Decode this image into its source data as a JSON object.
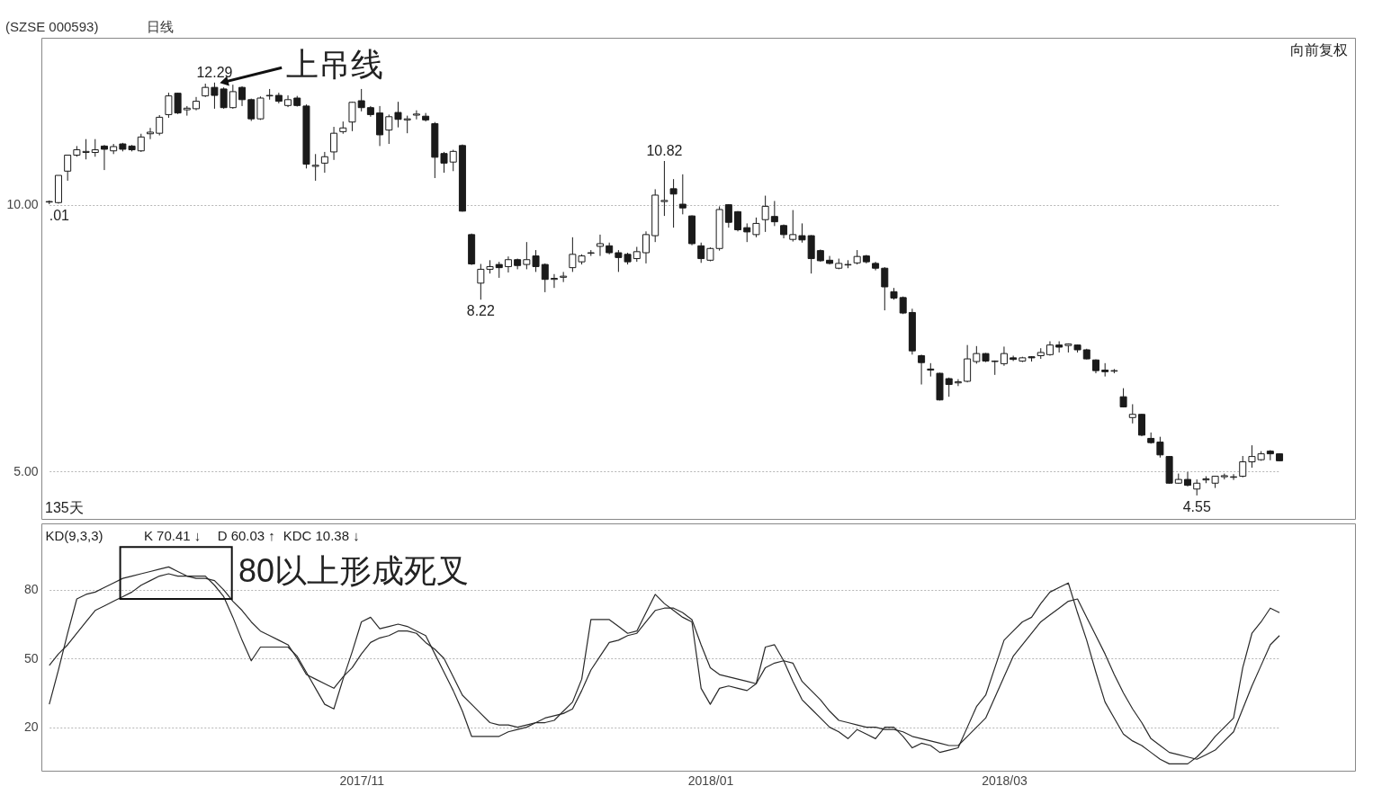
{
  "chart_data": [
    {
      "type": "candlestick",
      "title": "(SZSE 000593)",
      "subtitle": "日线",
      "color": "#1a1a1a",
      "categories": [
        null,
        null,
        null,
        null,
        null,
        null,
        null,
        null,
        null,
        null,
        null,
        null,
        null,
        null,
        null,
        null,
        null,
        null,
        null,
        null,
        null,
        null,
        null,
        null,
        null,
        null,
        null,
        null,
        null,
        null,
        null,
        null,
        null,
        null,
        "2017/11",
        null,
        null,
        null,
        null,
        null,
        null,
        null,
        null,
        null,
        null,
        null,
        null,
        null,
        null,
        null,
        null,
        null,
        null,
        null,
        null,
        null,
        null,
        null,
        null,
        null,
        null,
        null,
        null,
        null,
        null,
        null,
        null,
        null,
        null,
        null,
        null,
        null,
        "2018/01",
        null,
        null,
        null,
        null,
        null,
        null,
        null,
        null,
        null,
        null,
        null,
        null,
        null,
        null,
        null,
        null,
        null,
        null,
        null,
        null,
        null,
        null,
        null,
        null,
        null,
        null,
        null,
        null,
        null,
        null,
        null,
        "2018/03",
        null,
        null,
        null,
        null,
        null,
        null,
        null,
        null,
        null,
        null,
        null,
        null,
        null,
        null,
        null,
        null,
        null,
        null,
        null,
        null,
        null,
        null,
        null,
        null,
        null,
        null,
        null,
        null,
        null,
        null
      ],
      "ohlc": [
        [
          10.05,
          10.08,
          10.01,
          10.06
        ],
        [
          10.04,
          10.55,
          10.02,
          10.55
        ],
        [
          10.63,
          10.93,
          10.45,
          10.93
        ],
        [
          10.93,
          11.1,
          10.9,
          11.03
        ],
        [
          10.98,
          11.23,
          10.85,
          11.0
        ],
        [
          10.98,
          11.23,
          10.9,
          11.03
        ],
        [
          11.1,
          11.12,
          10.65,
          11.04
        ],
        [
          11.01,
          11.14,
          10.95,
          11.09
        ],
        [
          11.14,
          11.16,
          11.0,
          11.04
        ],
        [
          11.1,
          11.12,
          11.0,
          11.03
        ],
        [
          11.01,
          11.33,
          10.99,
          11.27
        ],
        [
          11.33,
          11.44,
          11.23,
          11.36
        ],
        [
          11.34,
          11.68,
          11.3,
          11.64
        ],
        [
          11.69,
          12.1,
          11.63,
          12.04
        ],
        [
          12.09,
          12.1,
          11.7,
          11.72
        ],
        [
          11.78,
          11.85,
          11.67,
          11.81
        ],
        [
          11.8,
          12.02,
          11.77,
          11.94
        ],
        [
          12.04,
          12.27,
          12.02,
          12.2
        ],
        [
          12.2,
          12.29,
          11.8,
          12.05
        ],
        [
          12.17,
          12.2,
          11.8,
          11.82
        ],
        [
          11.82,
          12.25,
          11.8,
          12.12
        ],
        [
          12.2,
          12.22,
          11.85,
          11.97
        ],
        [
          11.97,
          11.99,
          11.57,
          11.61
        ],
        [
          11.61,
          12.03,
          11.59,
          12.0
        ],
        [
          12.04,
          12.17,
          11.97,
          12.05
        ],
        [
          12.05,
          12.1,
          11.9,
          11.94
        ],
        [
          11.86,
          12.05,
          11.83,
          11.97
        ],
        [
          12.0,
          12.04,
          11.84,
          11.86
        ],
        [
          11.85,
          11.88,
          10.68,
          10.76
        ],
        [
          10.72,
          10.95,
          10.45,
          10.74
        ],
        [
          10.78,
          10.99,
          10.6,
          10.9
        ],
        [
          10.99,
          11.46,
          10.84,
          11.34
        ],
        [
          11.37,
          11.56,
          11.33,
          11.44
        ],
        [
          11.55,
          11.93,
          11.38,
          11.92
        ],
        [
          11.95,
          12.17,
          11.75,
          11.82
        ],
        [
          11.82,
          11.85,
          11.65,
          11.69
        ],
        [
          11.72,
          11.85,
          11.1,
          11.31
        ],
        [
          11.4,
          11.69,
          11.14,
          11.65
        ],
        [
          11.73,
          11.93,
          11.45,
          11.6
        ],
        [
          11.59,
          11.67,
          11.34,
          11.61
        ],
        [
          11.68,
          11.77,
          11.6,
          11.7
        ],
        [
          11.66,
          11.72,
          11.56,
          11.59
        ],
        [
          11.52,
          11.55,
          10.5,
          10.89
        ],
        [
          10.96,
          10.99,
          10.6,
          10.78
        ],
        [
          10.8,
          11.03,
          10.63,
          11.0
        ],
        [
          11.11,
          11.13,
          9.87,
          9.88
        ],
        [
          9.44,
          9.46,
          8.87,
          8.89
        ],
        [
          8.53,
          8.89,
          8.22,
          8.79
        ],
        [
          8.79,
          8.96,
          8.71,
          8.84
        ],
        [
          8.88,
          8.93,
          8.63,
          8.82
        ],
        [
          8.84,
          9.03,
          8.73,
          8.97
        ],
        [
          8.97,
          8.99,
          8.79,
          8.86
        ],
        [
          8.88,
          9.3,
          8.79,
          8.97
        ],
        [
          9.04,
          9.15,
          8.74,
          8.84
        ],
        [
          8.88,
          8.9,
          8.36,
          8.6
        ],
        [
          8.6,
          8.7,
          8.44,
          8.62
        ],
        [
          8.64,
          8.74,
          8.55,
          8.66
        ],
        [
          8.82,
          9.39,
          8.74,
          9.07
        ],
        [
          8.93,
          9.07,
          8.88,
          9.04
        ],
        [
          9.09,
          9.15,
          9.04,
          9.1
        ],
        [
          9.22,
          9.44,
          9.04,
          9.27
        ],
        [
          9.23,
          9.29,
          9.07,
          9.1
        ],
        [
          9.1,
          9.15,
          8.74,
          9.01
        ],
        [
          9.07,
          9.1,
          8.88,
          8.93
        ],
        [
          8.99,
          9.21,
          8.93,
          9.12
        ],
        [
          9.1,
          9.5,
          8.9,
          9.44
        ],
        [
          9.42,
          10.29,
          9.3,
          10.18
        ],
        [
          10.06,
          10.82,
          9.79,
          10.08
        ],
        [
          10.3,
          10.48,
          9.57,
          10.2
        ],
        [
          10.01,
          10.57,
          9.82,
          9.94
        ],
        [
          9.79,
          9.8,
          9.24,
          9.27
        ],
        [
          9.23,
          9.29,
          8.91,
          8.99
        ],
        [
          8.96,
          9.2,
          8.94,
          9.18
        ],
        [
          9.18,
          9.97,
          9.14,
          9.91
        ],
        [
          10.0,
          10.01,
          9.57,
          9.67
        ],
        [
          9.87,
          9.88,
          9.5,
          9.53
        ],
        [
          9.57,
          9.65,
          9.3,
          9.49
        ],
        [
          9.44,
          9.76,
          9.39,
          9.65
        ],
        [
          9.72,
          10.17,
          9.49,
          9.97
        ],
        [
          9.78,
          10.07,
          9.6,
          9.68
        ],
        [
          9.61,
          9.63,
          9.37,
          9.44
        ],
        [
          9.35,
          9.9,
          9.31,
          9.44
        ],
        [
          9.42,
          9.65,
          9.29,
          9.34
        ],
        [
          9.42,
          9.43,
          8.71,
          8.99
        ],
        [
          9.14,
          9.16,
          8.93,
          8.95
        ],
        [
          8.96,
          9.04,
          8.88,
          8.9
        ],
        [
          8.81,
          8.99,
          8.79,
          8.9
        ],
        [
          8.87,
          8.96,
          8.81,
          8.88
        ],
        [
          8.91,
          9.15,
          8.88,
          9.03
        ],
        [
          9.04,
          9.06,
          8.9,
          8.93
        ],
        [
          8.9,
          8.93,
          8.77,
          8.81
        ],
        [
          8.81,
          8.83,
          8.02,
          8.46
        ],
        [
          8.37,
          8.44,
          8.22,
          8.25
        ],
        [
          8.26,
          8.28,
          7.95,
          7.97
        ],
        [
          7.98,
          8.05,
          7.19,
          7.26
        ],
        [
          7.17,
          7.19,
          6.63,
          7.04
        ],
        [
          6.92,
          7.03,
          6.78,
          6.9
        ],
        [
          6.84,
          6.85,
          6.33,
          6.34
        ],
        [
          6.74,
          6.76,
          6.4,
          6.63
        ],
        [
          6.66,
          6.73,
          6.6,
          6.68
        ],
        [
          6.69,
          7.37,
          6.67,
          7.11
        ],
        [
          7.06,
          7.35,
          7.02,
          7.21
        ],
        [
          7.21,
          7.22,
          7.05,
          7.07
        ],
        [
          7.06,
          7.08,
          6.81,
          7.07
        ],
        [
          7.02,
          7.34,
          6.98,
          7.21
        ],
        [
          7.13,
          7.17,
          7.07,
          7.1
        ],
        [
          7.07,
          7.15,
          7.05,
          7.13
        ],
        [
          7.15,
          7.16,
          7.06,
          7.13
        ],
        [
          7.17,
          7.31,
          7.11,
          7.23
        ],
        [
          7.19,
          7.44,
          7.17,
          7.37
        ],
        [
          7.37,
          7.44,
          7.23,
          7.33
        ],
        [
          7.36,
          7.4,
          7.23,
          7.39
        ],
        [
          7.37,
          7.38,
          7.23,
          7.28
        ],
        [
          7.28,
          7.3,
          7.1,
          7.11
        ],
        [
          7.09,
          7.1,
          6.84,
          6.89
        ],
        [
          6.9,
          7.03,
          6.78,
          6.87
        ],
        [
          6.88,
          6.92,
          6.84,
          6.89
        ],
        [
          6.4,
          6.56,
          6.2,
          6.21
        ],
        [
          6.01,
          6.26,
          5.9,
          6.07
        ],
        [
          6.07,
          6.08,
          5.66,
          5.68
        ],
        [
          5.62,
          5.73,
          5.52,
          5.54
        ],
        [
          5.55,
          5.65,
          5.26,
          5.31
        ],
        [
          5.28,
          5.29,
          4.77,
          4.78
        ],
        [
          4.78,
          4.96,
          4.77,
          4.85
        ],
        [
          4.85,
          4.99,
          4.72,
          4.74
        ],
        [
          4.67,
          4.85,
          4.55,
          4.78
        ],
        [
          4.84,
          4.91,
          4.78,
          4.86
        ],
        [
          4.78,
          4.92,
          4.69,
          4.91
        ],
        [
          4.9,
          4.96,
          4.85,
          4.92
        ],
        [
          4.89,
          4.95,
          4.84,
          4.9
        ],
        [
          4.91,
          5.29,
          4.89,
          5.18
        ],
        [
          5.18,
          5.49,
          5.07,
          5.28
        ],
        [
          5.22,
          5.38,
          5.2,
          5.33
        ],
        [
          5.38,
          5.4,
          5.21,
          5.33
        ],
        [
          5.33,
          5.34,
          5.19,
          5.2
        ]
      ],
      "ylim": [
        4.11,
        13.13
      ],
      "yticks": [
        {
          "value": 5,
          "label": "5.00"
        },
        {
          "value": 10,
          "label": "10.00"
        }
      ],
      "grid": "y",
      "tick_labels": "y",
      "annotations": [
        {
          "text": "12.29",
          "y": 12.29
        },
        {
          "text": "10.82",
          "y": 10.82
        },
        {
          "text": "8.22",
          "y": 8.22
        },
        {
          "text": "4.55",
          "y": 4.55
        },
        {
          "text": ".01",
          "y": 10.01
        },
        "上吊线",
        "向前复权",
        "135天"
      ]
    },
    {
      "type": "line",
      "line_style": "solid",
      "categories": [
        null,
        null,
        null,
        null,
        null,
        null,
        null,
        null,
        null,
        null,
        null,
        null,
        null,
        null,
        null,
        null,
        null,
        null,
        null,
        null,
        null,
        null,
        null,
        null,
        null,
        null,
        null,
        null,
        null,
        null,
        null,
        null,
        null,
        null,
        "2017/11",
        null,
        null,
        null,
        null,
        null,
        null,
        null,
        null,
        null,
        null,
        null,
        null,
        null,
        null,
        null,
        null,
        null,
        null,
        null,
        null,
        null,
        null,
        null,
        null,
        null,
        null,
        null,
        null,
        null,
        null,
        null,
        null,
        null,
        null,
        null,
        null,
        null,
        "2018/01",
        null,
        null,
        null,
        null,
        null,
        null,
        null,
        null,
        null,
        null,
        null,
        null,
        null,
        null,
        null,
        null,
        null,
        null,
        null,
        null,
        null,
        null,
        null,
        null,
        null,
        null,
        null,
        null,
        null,
        null,
        null,
        "2018/03",
        null,
        null,
        null,
        null,
        null,
        null,
        null,
        null,
        null,
        null,
        null,
        null,
        null,
        null,
        null,
        null,
        null,
        null,
        null,
        null,
        null,
        null,
        null,
        null,
        null,
        null,
        null,
        null,
        null,
        null
      ],
      "series": [
        {
          "color": "#2a2a2a",
          "values": [
            30,
            45,
            61,
            76,
            78,
            79,
            81,
            83,
            85,
            86,
            87,
            88,
            89,
            90,
            88,
            86,
            86,
            86,
            82,
            77,
            68,
            58,
            49,
            55,
            55,
            55,
            55,
            51,
            44,
            37,
            30,
            28,
            41,
            53,
            66,
            68,
            63,
            64,
            65,
            64,
            62,
            60,
            52,
            44,
            36,
            27,
            16,
            16,
            16,
            16,
            18,
            19,
            20,
            22,
            22,
            23,
            27,
            31,
            41,
            67,
            67,
            67,
            64,
            61,
            62,
            70,
            78,
            74,
            71,
            68,
            66,
            37,
            30,
            37,
            38,
            37,
            36,
            39,
            55,
            56,
            49,
            40,
            32,
            28,
            24,
            20,
            18,
            15,
            19,
            17,
            15,
            20,
            20,
            16,
            11,
            13,
            12,
            9,
            10,
            11,
            20,
            29,
            34,
            46,
            58,
            62,
            66,
            68,
            74,
            79,
            81,
            83,
            70,
            58,
            44,
            31,
            24,
            17,
            14,
            12,
            9,
            6,
            4,
            4,
            4,
            7,
            11,
            16,
            20,
            24,
            46,
            61,
            66,
            72,
            70
          ]
        },
        {
          "color": "#2a2a2a",
          "values": [
            47,
            52,
            56,
            61,
            66,
            71,
            73,
            75,
            77,
            79,
            82,
            84,
            86,
            87,
            86,
            86,
            85,
            85,
            84,
            80,
            75,
            71,
            66,
            62,
            60,
            58,
            56,
            50,
            43,
            41,
            39,
            37,
            42,
            46,
            52,
            57,
            59,
            60,
            62,
            62,
            61,
            57,
            54,
            50,
            42,
            34,
            30,
            26,
            22,
            21,
            21,
            20,
            21,
            22,
            24,
            25,
            26,
            28,
            36,
            45,
            51,
            57,
            58,
            60,
            61,
            66,
            71,
            72,
            72,
            70,
            67,
            56,
            46,
            43,
            42,
            41,
            40,
            39,
            46,
            48,
            49,
            48,
            40,
            36,
            32,
            27,
            23,
            22,
            21,
            20,
            20,
            19,
            19,
            18,
            16,
            15,
            14,
            13,
            12,
            12,
            16,
            20,
            24,
            33,
            42,
            51,
            56,
            61,
            66,
            69,
            72,
            75,
            76,
            68,
            60,
            52,
            43,
            35,
            28,
            22,
            15,
            12,
            9,
            8,
            7,
            6,
            8,
            10,
            14,
            18,
            28,
            38,
            47,
            56,
            60
          ]
        }
      ],
      "ylim": [
        1,
        109
      ],
      "yticks": [
        20,
        50,
        80
      ],
      "grid": "y",
      "annotations": [
        "KD(9,3,3)",
        "K 70.41 ↓",
        "D 60.03 ↑",
        "KDC 10.38 ↓",
        "80以上形成死叉"
      ]
    }
  ]
}
